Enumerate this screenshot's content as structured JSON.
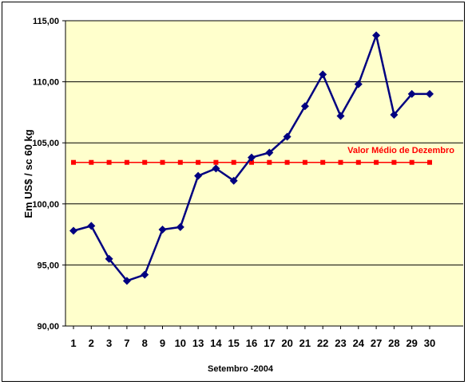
{
  "chart_data": {
    "type": "line",
    "xlabel": "Setembro -2004",
    "ylabel": "Em US$ / sc 60 kg",
    "ylim": [
      90,
      115
    ],
    "yticks": [
      "90,00",
      "95,00",
      "100,00",
      "105,00",
      "110,00",
      "115,00"
    ],
    "grid": "horizontal",
    "categories": [
      "1",
      "2",
      "3",
      "7",
      "8",
      "9",
      "10",
      "13",
      "14",
      "15",
      "16",
      "17",
      "20",
      "21",
      "22",
      "23",
      "24",
      "27",
      "28",
      "29",
      "30"
    ],
    "series": [
      {
        "name": "",
        "color": "#000080",
        "marker": "diamond",
        "values": [
          97.8,
          98.2,
          95.5,
          93.7,
          94.2,
          97.9,
          98.1,
          102.3,
          102.9,
          101.9,
          103.8,
          104.2,
          105.5,
          108.0,
          110.6,
          107.2,
          109.8,
          113.8,
          107.3,
          109.0,
          109.0
        ]
      },
      {
        "name": "Valor Médio de Dezembro",
        "color": "#ff0000",
        "marker": "square",
        "values": [
          103.4,
          103.4,
          103.4,
          103.4,
          103.4,
          103.4,
          103.4,
          103.4,
          103.4,
          103.4,
          103.4,
          103.4,
          103.4,
          103.4,
          103.4,
          103.4,
          103.4,
          103.4,
          103.4,
          103.4,
          103.4
        ]
      }
    ],
    "annotation": "Valor Médio de Dezembro",
    "colors": {
      "plot_bg": "#ffffcc",
      "grid": "#000000",
      "main_line": "#000080",
      "mean_line": "#ff0000"
    }
  }
}
